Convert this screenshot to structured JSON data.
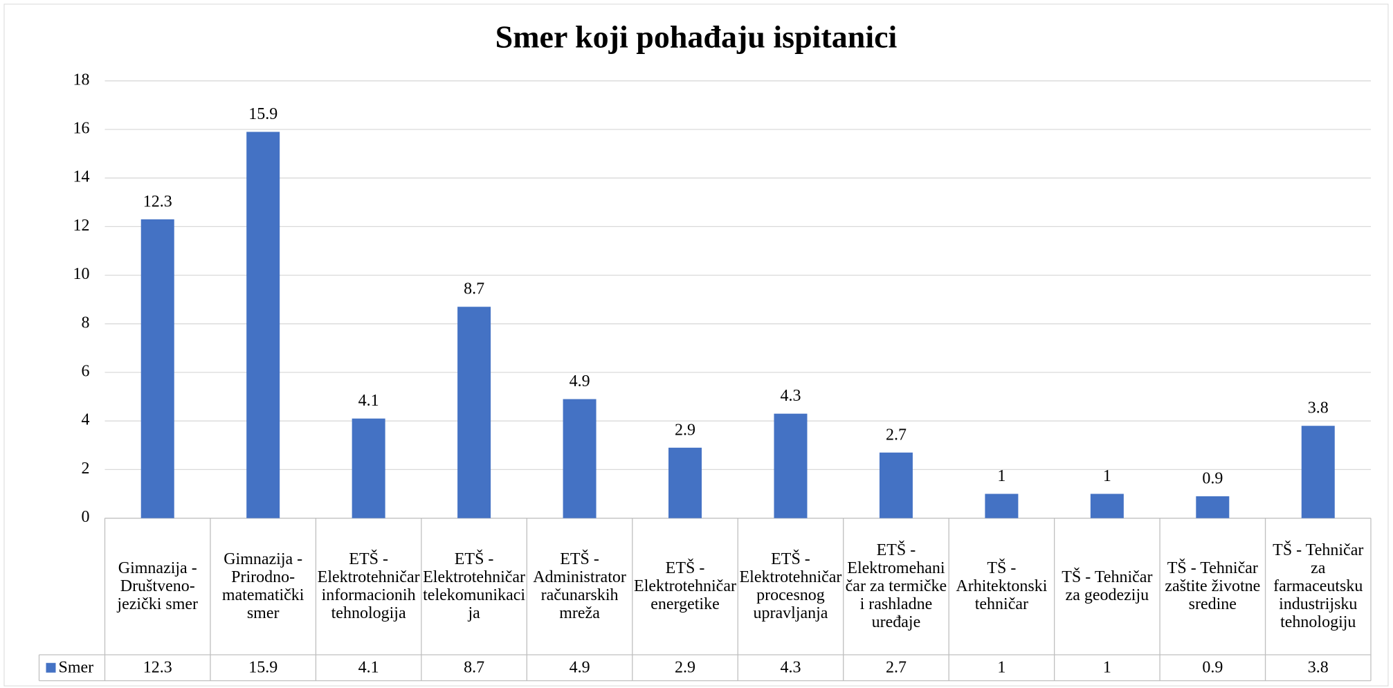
{
  "chart_data": {
    "type": "bar",
    "title": "Smer koji pohađaju ispitanici",
    "categories": [
      "Gimnazija - Društveno-jezički smer",
      "Gimnazija - Prirodno-matematički smer",
      "ETŠ - Elektrotehničar informacionih tehnologija",
      "ETŠ - Elektrotehničar telekomunikacija",
      "ETŠ - Administrator računarskih mreža",
      "ETŠ - Elektrotehničar energetike",
      "ETŠ - Elektrotehničar procesnog upravljanja",
      "ETŠ - Elektromehaničar za termičke i rashladne uređaje",
      "TŠ - Arhitektonski tehničar",
      "TŠ - Tehničar za geodeziju",
      "TŠ - Tehničar zaštite životne sredine",
      "TŠ - Tehničar za farmaceutsku industrijsku tehnologiju"
    ],
    "series": [
      {
        "name": "Smer",
        "color": "#4472c4",
        "values": [
          12.3,
          15.9,
          4.1,
          8.7,
          4.9,
          2.9,
          4.3,
          2.7,
          1,
          1,
          0.9,
          3.8
        ]
      }
    ],
    "ylim": [
      0,
      18
    ],
    "yticks": [
      0,
      2,
      4,
      6,
      8,
      10,
      12,
      14,
      16,
      18
    ],
    "grid": true,
    "data_table": true
  }
}
